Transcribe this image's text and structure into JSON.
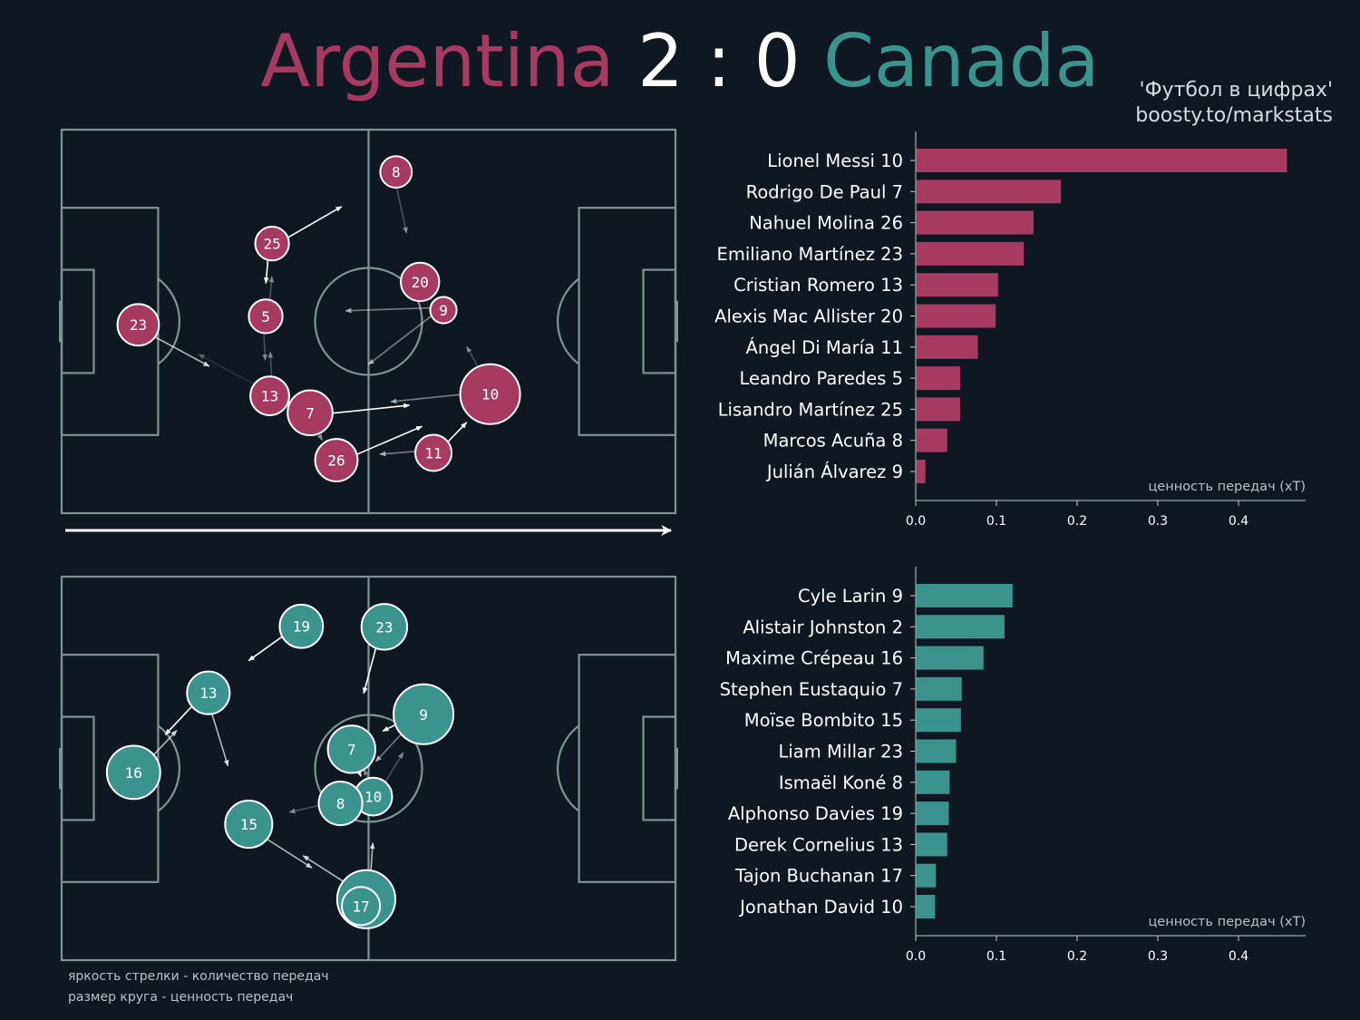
{
  "title": {
    "home": "Argentina",
    "score": "2 : 0",
    "away": "Canada"
  },
  "credit": {
    "line1": "'Футбол в цифрах'",
    "line2": "boosty.to/markstats"
  },
  "legend_notes": {
    "line1": "яркость стрелки - количество передач",
    "line2": "размер круга - ценность передач"
  },
  "colors": {
    "background": "#0f1820",
    "pitch_lines": "#7f9490",
    "argentina": "#a63a60",
    "canada": "#3b938d"
  },
  "chart_data": [
    {
      "type": "bar",
      "orientation": "horizontal",
      "team": "Argentina",
      "categories": [
        "Lionel Messi 10",
        "Rodrigo De Paul 7",
        "Nahuel Molina 26",
        "Emiliano Martínez 23",
        "Cristian Romero 13",
        "Alexis Mac Allister 20",
        "Ángel Di María 11",
        "Leandro Paredes 5",
        "Lisandro Martínez 25",
        "Marcos Acuña 8",
        "Julián Álvarez 9"
      ],
      "values": [
        0.46,
        0.18,
        0.146,
        0.134,
        0.102,
        0.099,
        0.077,
        0.055,
        0.055,
        0.039,
        0.012
      ],
      "xlabel": "ценность передач (xT)",
      "xlim": [
        0,
        0.48
      ],
      "xticks": [
        "0.0",
        "0.1",
        "0.2",
        "0.3",
        "0.4"
      ],
      "color": "#a63a60"
    },
    {
      "type": "bar",
      "orientation": "horizontal",
      "team": "Canada",
      "categories": [
        "Cyle Larin 9",
        "Alistair Johnston 2",
        "Maxime Crépeau 16",
        "Stephen Eustaquio 7",
        "Moïse Bombito 15",
        "Liam Millar 23",
        "Ismaël Koné 8",
        "Alphonso Davies 19",
        "Derek Cornelius 13",
        "Tajon Buchanan 17",
        "Jonathan David 10"
      ],
      "values": [
        0.12,
        0.11,
        0.084,
        0.057,
        0.056,
        0.05,
        0.042,
        0.041,
        0.039,
        0.025,
        0.024
      ],
      "xlabel": "ценность передач (xT)",
      "xlim": [
        0,
        0.48
      ],
      "xticks": [
        "0.0",
        "0.1",
        "0.2",
        "0.3",
        "0.4"
      ],
      "color": "#3b938d"
    },
    {
      "type": "scatter",
      "subtype": "pass-network",
      "team": "Argentina",
      "pitch": {
        "length": 105,
        "width": 68
      },
      "nodes": [
        {
          "label": "8",
          "x": 57.2,
          "y": 60.5,
          "xt": 0.039
        },
        {
          "label": "25",
          "x": 36.0,
          "y": 47.8,
          "xt": 0.055
        },
        {
          "label": "20",
          "x": 61.3,
          "y": 41.0,
          "xt": 0.099
        },
        {
          "label": "9",
          "x": 65.3,
          "y": 36.0,
          "xt": 0.012
        },
        {
          "label": "5",
          "x": 34.9,
          "y": 34.9,
          "xt": 0.055
        },
        {
          "label": "23",
          "x": 13.1,
          "y": 33.4,
          "xt": 0.134
        },
        {
          "label": "13",
          "x": 35.6,
          "y": 20.8,
          "xt": 0.102
        },
        {
          "label": "10",
          "x": 73.3,
          "y": 21.1,
          "xt": 0.46
        },
        {
          "label": "7",
          "x": 42.5,
          "y": 17.8,
          "xt": 0.18
        },
        {
          "label": "26",
          "x": 47.0,
          "y": 9.4,
          "xt": 0.146
        },
        {
          "label": "11",
          "x": 63.6,
          "y": 10.7,
          "xt": 0.077
        }
      ],
      "edges": [
        {
          "from": "25",
          "to": "8",
          "count": 5
        },
        {
          "from": "8",
          "to": "20",
          "count": 2
        },
        {
          "from": "25",
          "to": "5",
          "count": 5
        },
        {
          "from": "5",
          "to": "25",
          "count": 2
        },
        {
          "from": "5",
          "to": "13",
          "count": 2
        },
        {
          "from": "13",
          "to": "5",
          "count": 2
        },
        {
          "from": "9",
          "to": "5",
          "count": 3
        },
        {
          "from": "9",
          "to": "7",
          "count": 3
        },
        {
          "from": "20",
          "to": "9",
          "count": 5
        },
        {
          "from": "10",
          "to": "9",
          "count": 2
        },
        {
          "from": "23",
          "to": "13",
          "count": 4
        },
        {
          "from": "13",
          "to": "23",
          "count": 1
        },
        {
          "from": "7",
          "to": "10",
          "count": 5
        },
        {
          "from": "10",
          "to": "7",
          "count": 3
        },
        {
          "from": "26",
          "to": "10",
          "count": 5
        },
        {
          "from": "11",
          "to": "10",
          "count": 5
        },
        {
          "from": "11",
          "to": "26",
          "count": 3
        },
        {
          "from": "7",
          "to": "26",
          "count": 2
        }
      ],
      "attack_direction": "left-to-right"
    },
    {
      "type": "scatter",
      "subtype": "pass-network",
      "team": "Canada",
      "pitch": {
        "length": 105,
        "width": 68
      },
      "nodes": [
        {
          "label": "19",
          "x": 41.0,
          "y": 59.2,
          "xt": 0.041
        },
        {
          "label": "23",
          "x": 55.2,
          "y": 59.1,
          "xt": 0.05
        },
        {
          "label": "13",
          "x": 25.1,
          "y": 47.4,
          "xt": 0.039
        },
        {
          "label": "9",
          "x": 61.9,
          "y": 43.6,
          "xt": 0.12
        },
        {
          "label": "7",
          "x": 49.6,
          "y": 37.4,
          "xt": 0.057
        },
        {
          "label": "16",
          "x": 12.3,
          "y": 33.3,
          "xt": 0.084
        },
        {
          "label": "10",
          "x": 53.3,
          "y": 29.0,
          "xt": 0.024
        },
        {
          "label": "8",
          "x": 47.7,
          "y": 27.8,
          "xt": 0.042
        },
        {
          "label": "15",
          "x": 32.0,
          "y": 24.1,
          "xt": 0.056
        },
        {
          "label": "2",
          "x": 52.1,
          "y": 10.8,
          "xt": 0.11
        },
        {
          "label": "17",
          "x": 51.2,
          "y": 9.6,
          "xt": 0.025
        }
      ],
      "edges": [
        {
          "from": "19",
          "to": "13",
          "count": 5
        },
        {
          "from": "23",
          "to": "7",
          "count": 5
        },
        {
          "from": "9",
          "to": "8",
          "count": 3
        },
        {
          "from": "9",
          "to": "7",
          "count": 5
        },
        {
          "from": "13",
          "to": "15",
          "count": 4
        },
        {
          "from": "13",
          "to": "16",
          "count": 5
        },
        {
          "from": "16",
          "to": "13",
          "count": 4
        },
        {
          "from": "7",
          "to": "10",
          "count": 5
        },
        {
          "from": "10",
          "to": "7",
          "count": 2
        },
        {
          "from": "8",
          "to": "15",
          "count": 2
        },
        {
          "from": "2",
          "to": "15",
          "count": 4
        },
        {
          "from": "15",
          "to": "2",
          "count": 4
        },
        {
          "from": "2",
          "to": "10",
          "count": 4
        },
        {
          "from": "17",
          "to": "2",
          "count": 3
        },
        {
          "from": "10",
          "to": "9",
          "count": 2
        }
      ]
    }
  ]
}
